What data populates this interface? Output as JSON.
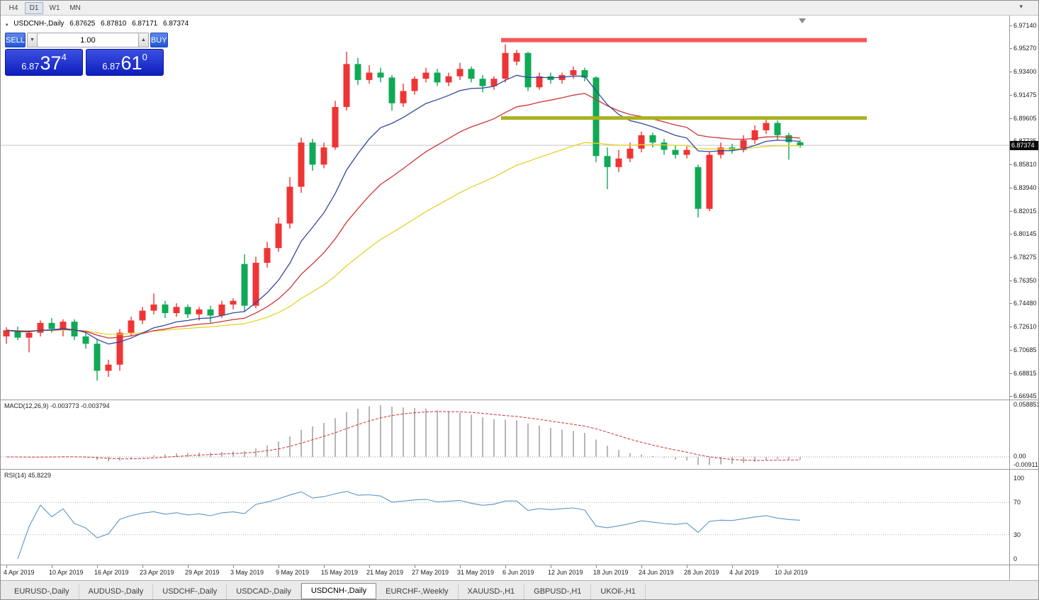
{
  "toolbar": {
    "timeframes": [
      "H4",
      "D1",
      "W1",
      "MN"
    ],
    "active": "D1"
  },
  "icons": {
    "title_marker": "▴",
    "volume_up": "▲",
    "volume_down": "▼",
    "toolbar_overflow": "▾"
  },
  "window": {
    "symbol": "USDCNH-,Daily",
    "open": "6.87625",
    "high": "6.87810",
    "low": "6.87171",
    "close": "6.87374"
  },
  "trade_panel": {
    "sell_label": "SELL",
    "buy_label": "BUY",
    "volume": "1.00",
    "sell_price": {
      "main": "6.87",
      "big": "37",
      "sup": "4"
    },
    "buy_price": {
      "main": "6.87",
      "big": "61",
      "sup": "0"
    }
  },
  "price_axis": {
    "labels": [
      "6.97140",
      "6.95270",
      "6.93400",
      "6.91475",
      "6.89605",
      "6.87735",
      "6.85810",
      "6.83940",
      "6.82015",
      "6.80145",
      "6.78275",
      "6.76350",
      "6.74480",
      "6.72610",
      "6.70685",
      "6.68815",
      "6.66945"
    ],
    "current": "6.87374"
  },
  "chart_data": [
    {
      "type": "candlestick",
      "title": "USDCNH-,Daily",
      "x_labels": [
        "4 Apr 2019",
        "10 Apr 2019",
        "16 Apr 2019",
        "23 Apr 2019",
        "29 Apr 2019",
        "3 May 2019",
        "9 May 2019",
        "15 May 2019",
        "21 May 2019",
        "27 May 2019",
        "31 May 2019",
        "6 Jun 2019",
        "12 Jun 2019",
        "18 Jun 2019",
        "24 Jun 2019",
        "28 Jun 2019",
        "4 Jul 2019",
        "10 Jul 2019"
      ],
      "x_label_indices": [
        0,
        4,
        8,
        12,
        16,
        20,
        24,
        28,
        32,
        36,
        40,
        44,
        48,
        52,
        56,
        60,
        64,
        68
      ],
      "y_range": {
        "max": 6.9714,
        "min": 6.66945
      },
      "current_price": 6.87374,
      "up_color": "#ef3434",
      "down_color": "#10a956",
      "moving_averages": [
        {
          "period": 10,
          "color": "#31479f"
        },
        {
          "period": 20,
          "color": "#cf3434"
        },
        {
          "period": 40,
          "color": "#e6d32a"
        }
      ],
      "levels": [
        {
          "name": "resistance",
          "value": 6.9595,
          "color": "#f4595b",
          "thickness": 6
        },
        {
          "name": "support",
          "value": 6.896,
          "color": "#a9b21f",
          "thickness": 5
        }
      ],
      "candles": [
        [
          6.718,
          6.7255,
          6.712,
          6.723
        ],
        [
          6.723,
          6.726,
          6.715,
          6.717
        ],
        [
          6.717,
          6.723,
          6.705,
          6.721
        ],
        [
          6.721,
          6.731,
          6.718,
          6.729
        ],
        [
          6.729,
          6.733,
          6.721,
          6.724
        ],
        [
          6.724,
          6.732,
          6.718,
          6.73
        ],
        [
          6.73,
          6.732,
          6.715,
          6.718
        ],
        [
          6.718,
          6.722,
          6.708,
          6.712
        ],
        [
          6.712,
          6.716,
          6.682,
          6.69
        ],
        [
          6.69,
          6.699,
          6.685,
          6.695
        ],
        [
          6.695,
          6.724,
          6.69,
          6.721
        ],
        [
          6.721,
          6.734,
          6.718,
          6.731
        ],
        [
          6.731,
          6.742,
          6.728,
          6.739
        ],
        [
          6.739,
          6.753,
          6.736,
          6.744
        ],
        [
          6.744,
          6.747,
          6.733,
          6.737
        ],
        [
          6.737,
          6.745,
          6.734,
          6.742
        ],
        [
          6.742,
          6.744,
          6.733,
          6.736
        ],
        [
          6.736,
          6.742,
          6.731,
          6.74
        ],
        [
          6.74,
          6.743,
          6.729,
          6.735
        ],
        [
          6.735,
          6.747,
          6.733,
          6.744
        ],
        [
          6.744,
          6.749,
          6.74,
          6.747
        ],
        [
          6.777,
          6.785,
          6.738,
          6.743
        ],
        [
          6.743,
          6.783,
          6.741,
          6.778
        ],
        [
          6.778,
          6.795,
          6.774,
          6.79
        ],
        [
          6.79,
          6.815,
          6.787,
          6.81
        ],
        [
          6.81,
          6.848,
          6.806,
          6.84
        ],
        [
          6.84,
          6.88,
          6.835,
          6.876
        ],
        [
          6.876,
          6.879,
          6.853,
          6.858
        ],
        [
          6.858,
          6.876,
          6.855,
          6.872
        ],
        [
          6.872,
          6.91,
          6.87,
          6.905
        ],
        [
          6.905,
          6.95,
          6.902,
          6.94
        ],
        [
          6.94,
          6.945,
          6.923,
          6.927
        ],
        [
          6.927,
          6.939,
          6.924,
          6.933
        ],
        [
          6.933,
          6.937,
          6.925,
          6.929
        ],
        [
          6.929,
          6.931,
          6.902,
          6.908
        ],
        [
          6.908,
          6.924,
          6.905,
          6.918
        ],
        [
          6.918,
          6.93,
          6.915,
          6.928
        ],
        [
          6.928,
          6.937,
          6.925,
          6.933
        ],
        [
          6.933,
          6.936,
          6.922,
          6.925
        ],
        [
          6.925,
          6.933,
          6.922,
          6.93
        ],
        [
          6.93,
          6.941,
          6.927,
          6.936
        ],
        [
          6.936,
          6.938,
          6.925,
          6.928
        ],
        [
          6.928,
          6.931,
          6.917,
          6.922
        ],
        [
          6.922,
          6.93,
          6.919,
          6.928
        ],
        [
          6.928,
          6.956,
          6.925,
          6.949
        ],
        [
          6.942,
          6.9515,
          6.939,
          6.949
        ],
        [
          6.949,
          6.95,
          6.918,
          6.921
        ],
        [
          6.921,
          6.933,
          6.919,
          6.93
        ],
        [
          6.93,
          6.933,
          6.924,
          6.927
        ],
        [
          6.927,
          6.933,
          6.924,
          6.931
        ],
        [
          6.931,
          6.938,
          6.928,
          6.935
        ],
        [
          6.935,
          6.937,
          6.926,
          6.929
        ],
        [
          6.929,
          6.93,
          6.86,
          6.865
        ],
        [
          6.865,
          6.872,
          6.838,
          6.856
        ],
        [
          6.856,
          6.87,
          6.852,
          6.863
        ],
        [
          6.863,
          6.876,
          6.86,
          6.871
        ],
        [
          6.871,
          6.885,
          6.868,
          6.882
        ],
        [
          6.882,
          6.884,
          6.872,
          6.876
        ],
        [
          6.876,
          6.879,
          6.866,
          6.87
        ],
        [
          6.87,
          6.874,
          6.863,
          6.866
        ],
        [
          6.866,
          6.873,
          6.863,
          6.87
        ],
        [
          6.856,
          6.858,
          6.815,
          6.822
        ],
        [
          6.822,
          6.869,
          6.82,
          6.866
        ],
        [
          6.866,
          6.876,
          6.863,
          6.872
        ],
        [
          6.872,
          6.875,
          6.867,
          6.87
        ],
        [
          6.87,
          6.882,
          6.868,
          6.878
        ],
        [
          6.878,
          6.89,
          6.875,
          6.886
        ],
        [
          6.886,
          6.896,
          6.883,
          6.892
        ],
        [
          6.892,
          6.894,
          6.878,
          6.882
        ],
        [
          6.882,
          6.884,
          6.862,
          6.8763
        ],
        [
          6.87625,
          6.8781,
          6.87171,
          6.87374
        ]
      ]
    },
    {
      "type": "macd",
      "label": "MACD(12,26,9) -0.003773 -0.003794",
      "params": {
        "fast": 12,
        "slow": 26,
        "signal": 9
      },
      "current_macd": -0.003773,
      "current_signal": -0.003794,
      "axis_labels": {
        "max": "0.058851",
        "zero": "0.00",
        "min": "-0.009116"
      },
      "histogram_color": "#b6b6b6",
      "signal_color": "#cf3434"
    },
    {
      "type": "rsi",
      "label": "RSI(14) 45.8229",
      "period": 14,
      "current_value": 45.8229,
      "axis_labels": [
        "100",
        "70",
        "30",
        "0"
      ],
      "levels": [
        70,
        30
      ],
      "line_color": "#5a96c8"
    }
  ],
  "tabs": {
    "items": [
      "EURUSD-,Daily",
      "AUDUSD-,Daily",
      "USDCHF-,Daily",
      "USDCAD-,Daily",
      "USDCNH-,Daily",
      "EURCHF-,Weekly",
      "XAUUSD-,H1",
      "GBPUSD-,H1",
      "UKOil-,H1"
    ],
    "active_index": 4
  }
}
